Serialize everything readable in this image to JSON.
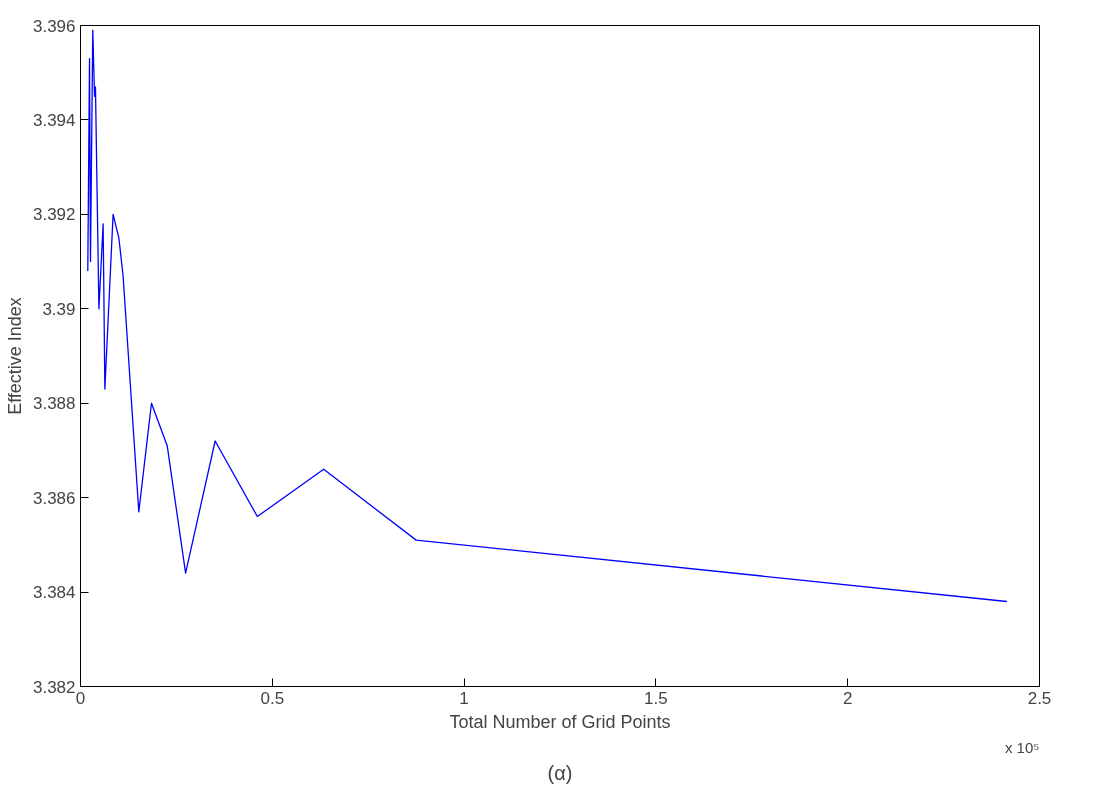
{
  "chart_data": {
    "type": "line",
    "xlabel": "Total Number of Grid Points",
    "ylabel": "Effective Index",
    "annotations": [
      "x 10⁵",
      "(α)"
    ],
    "x": [
      0.019,
      0.0235,
      0.026,
      0.032,
      0.0366,
      0.039,
      0.048,
      0.059,
      0.0635,
      0.085,
      0.1,
      0.111,
      0.152,
      0.185,
      0.226,
      0.274,
      0.351,
      0.461,
      0.634,
      0.875,
      2.415
    ],
    "series": [
      {
        "color": "#0000ff",
        "values": [
          3.3908,
          3.3953,
          3.391,
          3.3959,
          3.3945,
          3.3947,
          3.39,
          3.3918,
          3.3883,
          3.392,
          3.3915,
          3.3907,
          3.3857,
          3.388,
          3.3871,
          3.3844,
          3.3872,
          3.3856,
          3.3866,
          3.3851,
          3.3838
        ]
      }
    ],
    "xlim": [
      0,
      2.5
    ],
    "xticks": [
      0,
      0.5,
      1,
      1.5,
      2,
      2.5
    ],
    "ylim": [
      3.382,
      3.396
    ],
    "yticks": [
      3.382,
      3.384,
      3.386,
      3.388,
      3.39,
      3.392,
      3.394,
      3.396
    ],
    "grid": false,
    "marker": "none",
    "line_style": "solid"
  }
}
